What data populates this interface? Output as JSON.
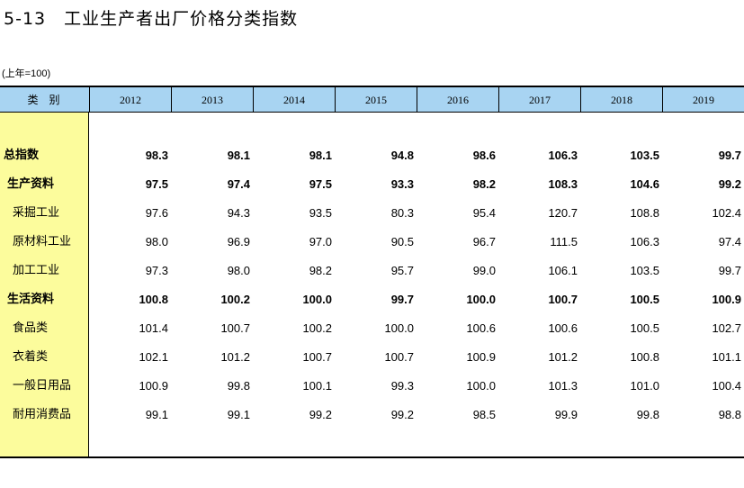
{
  "title": "5-13　工业生产者出厂价格分类指数",
  "unit_note": "(上年=100)",
  "header": {
    "category_label": "类别",
    "years": [
      "2012",
      "2013",
      "2014",
      "2015",
      "2016",
      "2017",
      "2018",
      "2019"
    ]
  },
  "rows": [
    {
      "name": "总指数",
      "level": 0,
      "bold": true,
      "values": [
        "98.3",
        "98.1",
        "98.1",
        "94.8",
        "98.6",
        "106.3",
        "103.5",
        "99.7"
      ]
    },
    {
      "name": "生产资料",
      "level": 1,
      "bold": true,
      "values": [
        "97.5",
        "97.4",
        "97.5",
        "93.3",
        "98.2",
        "108.3",
        "104.6",
        "99.2"
      ]
    },
    {
      "name": "采掘工业",
      "level": 2,
      "bold": false,
      "values": [
        "97.6",
        "94.3",
        "93.5",
        "80.3",
        "95.4",
        "120.7",
        "108.8",
        "102.4"
      ]
    },
    {
      "name": "原材料工业",
      "level": 2,
      "bold": false,
      "values": [
        "98.0",
        "96.9",
        "97.0",
        "90.5",
        "96.7",
        "111.5",
        "106.3",
        "97.4"
      ]
    },
    {
      "name": "加工工业",
      "level": 2,
      "bold": false,
      "values": [
        "97.3",
        "98.0",
        "98.2",
        "95.7",
        "99.0",
        "106.1",
        "103.5",
        "99.7"
      ]
    },
    {
      "name": "生活资料",
      "level": 1,
      "bold": true,
      "values": [
        "100.8",
        "100.2",
        "100.0",
        "99.7",
        "100.0",
        "100.7",
        "100.5",
        "100.9"
      ]
    },
    {
      "name": "食品类",
      "level": 2,
      "bold": false,
      "values": [
        "101.4",
        "100.7",
        "100.2",
        "100.0",
        "100.6",
        "100.6",
        "100.5",
        "102.7"
      ]
    },
    {
      "name": "衣着类",
      "level": 2,
      "bold": false,
      "values": [
        "102.1",
        "101.2",
        "100.7",
        "100.7",
        "100.9",
        "101.2",
        "100.8",
        "101.1"
      ]
    },
    {
      "name": "一般日用品",
      "level": 2,
      "bold": false,
      "values": [
        "100.9",
        "99.8",
        "100.1",
        "99.3",
        "100.0",
        "101.3",
        "101.0",
        "100.4"
      ]
    },
    {
      "name": "耐用消费品",
      "level": 2,
      "bold": false,
      "values": [
        "99.1",
        "99.1",
        "99.2",
        "99.2",
        "98.5",
        "99.9",
        "99.8",
        "98.8"
      ]
    }
  ],
  "colors": {
    "header_bg": "#a8d4f2",
    "category_column_bg": "#fcfc9c"
  }
}
